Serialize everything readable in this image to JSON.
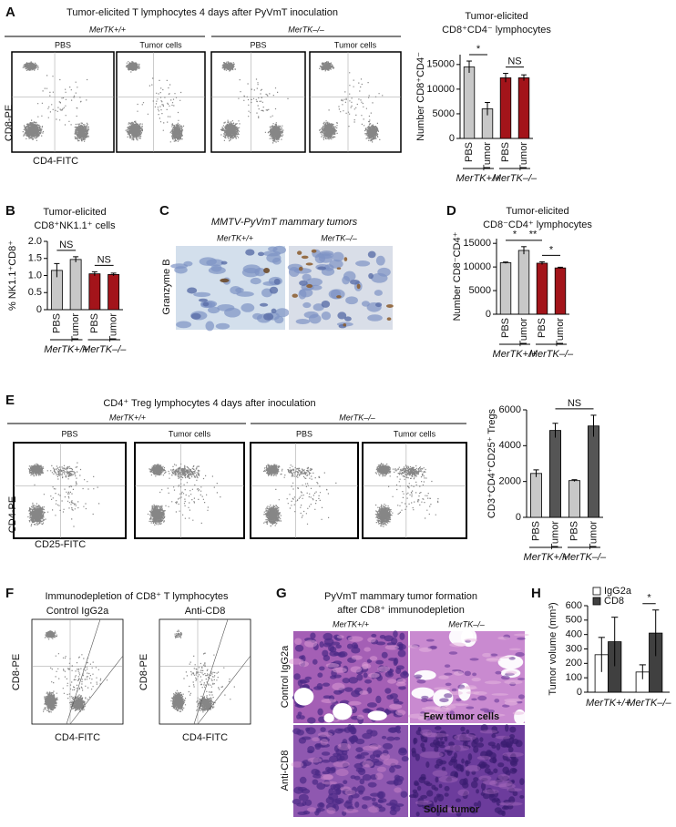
{
  "figure": {
    "A": {
      "letter": "A",
      "title": "Tumor-elicited T lymphocytes 4 days after PyVmT inoculation",
      "groups": [
        "MerTK+/+",
        "MerTK–/–"
      ],
      "plots": [
        "PBS",
        "Tumor cells",
        "PBS",
        "Tumor cells"
      ],
      "ylabel": "CD8-PE",
      "xlabel": "CD4-FITC"
    },
    "B": {
      "letter": "B"
    },
    "C": {
      "letter": "C",
      "title": "MMTV-PyVmT mammary tumors",
      "columns": [
        "MerTK+/+",
        "MerTK–/–"
      ],
      "row_label": "Granzyme B"
    },
    "D": {
      "letter": "D"
    },
    "E": {
      "letter": "E",
      "title": "CD4⁺ Treg lymphocytes 4 days after inoculation",
      "groups": [
        "MerTK+/+",
        "MerTK–/–"
      ],
      "plots": [
        "PBS",
        "Tumor cells",
        "PBS",
        "Tumor cells"
      ],
      "ylabel": "CD4-PE",
      "xlabel": "CD25-FITC"
    },
    "F": {
      "letter": "F",
      "title": "Immunodepletion of CD8⁺ T lymphocytes",
      "plots": [
        "Control IgG2a",
        "Anti-CD8"
      ],
      "ylabel": "CD8-PE",
      "xlabel": "CD4-FITC"
    },
    "G": {
      "letter": "G",
      "title": [
        "PyVmT mammary tumor formation",
        "after CD8⁺ immunodepletion"
      ],
      "columns": [
        "MerTK+/+",
        "MerTK–/–"
      ],
      "rows": [
        "Control IgG2a",
        "Anti-CD8"
      ],
      "captions": [
        "Few tumor cells",
        "Solid tumor"
      ]
    },
    "H": {
      "letter": "H"
    }
  },
  "chart_data": [
    {
      "type": "bar",
      "title": [
        "Tumor-elicited",
        "CD8⁺CD4⁻ lymphocytes"
      ],
      "ylabel": "Number CD8⁺CD4⁻",
      "categories": [
        "PBS",
        "Tumor",
        "PBS",
        "Tumor"
      ],
      "values": [
        14500,
        6000,
        12300,
        12300
      ],
      "errors": [
        1200,
        1300,
        900,
        600
      ],
      "colors": [
        "#c8c8c8",
        "#c8c8c8",
        "#a3141a",
        "#a3141a"
      ],
      "group_labels": [
        "MerTK+/+",
        "MerTK–/–"
      ],
      "significance": [
        {
          "label": "*",
          "between": [
            0,
            1
          ]
        },
        {
          "label": "NS",
          "between": [
            2,
            3
          ]
        }
      ],
      "ylim": [
        0,
        17000
      ],
      "yticks": [
        0,
        5000,
        10000,
        15000
      ]
    },
    {
      "type": "bar",
      "title": [
        "Tumor-elicited",
        "CD8⁺NK1.1⁺ cells"
      ],
      "ylabel": "% NK1.1⁺CD8⁺",
      "categories": [
        "PBS",
        "Tumor",
        "PBS",
        "Tumor"
      ],
      "values": [
        1.15,
        1.47,
        1.05,
        1.03
      ],
      "errors": [
        0.2,
        0.08,
        0.06,
        0.04
      ],
      "colors": [
        "#c8c8c8",
        "#c8c8c8",
        "#a3141a",
        "#a3141a"
      ],
      "group_labels": [
        "MerTK+/+",
        "MerTK–/–"
      ],
      "significance": [
        {
          "label": "NS",
          "between": [
            0,
            1
          ]
        },
        {
          "label": "NS",
          "between": [
            2,
            3
          ]
        }
      ],
      "ylim": [
        0,
        2
      ],
      "yticks": [
        0,
        0.5,
        {
          "value": 1,
          "label": "1.0"
        },
        1.5,
        {
          "value": 2,
          "label": "2.0"
        }
      ]
    },
    {
      "type": "bar",
      "title": [
        "Tumor-elicited",
        "CD8⁻CD4⁺ lymphocytes"
      ],
      "ylabel": "Number CD8⁻CD4⁺",
      "categories": [
        "PBS",
        "Tumor",
        "PBS",
        "Tumor"
      ],
      "values": [
        10900,
        13500,
        10800,
        9800
      ],
      "errors": [
        150,
        800,
        300,
        150
      ],
      "colors": [
        "#c8c8c8",
        "#c8c8c8",
        "#a3141a",
        "#a3141a"
      ],
      "group_labels": [
        "MerTK+/+",
        "MerTK–/–"
      ],
      "significance": [
        {
          "label": "*",
          "between": [
            0,
            1
          ]
        },
        {
          "label": "**",
          "between": [
            1,
            2
          ]
        },
        {
          "label": "*",
          "between": [
            2,
            3
          ]
        }
      ],
      "ylim": [
        0,
        16000
      ],
      "yticks": [
        0,
        5000,
        10000,
        15000
      ]
    },
    {
      "type": "bar",
      "ylabel": "CD3⁺CD4⁺CD25⁺ Tregs",
      "categories": [
        "PBS",
        "Tumor",
        "PBS",
        "Tumor"
      ],
      "values": [
        2450,
        4850,
        2050,
        5100
      ],
      "errors": [
        200,
        400,
        50,
        600
      ],
      "colors": [
        "#c8c8c8",
        "#555555",
        "#c8c8c8",
        "#555555"
      ],
      "group_labels": [
        "MerTK+/+",
        "MerTK–/–"
      ],
      "significance": [
        {
          "label": "NS",
          "between": [
            1,
            3
          ]
        }
      ],
      "ylim": [
        0,
        6000
      ],
      "yticks": [
        0,
        2000,
        4000,
        6000
      ]
    },
    {
      "type": "bar",
      "ylabel": "Tumor volume (mm³)",
      "categories": [
        "MerTK+/+",
        "MerTK–/–"
      ],
      "series": [
        {
          "name": "IgG2a",
          "color": "#ffffff",
          "values": [
            260,
            140
          ],
          "errors": [
            120,
            50
          ]
        },
        {
          "name": "CD8",
          "color": "#404040",
          "values": [
            350,
            410
          ],
          "errors": [
            170,
            160
          ]
        }
      ],
      "significance": [
        {
          "label": "*",
          "category": 1,
          "between": [
            0,
            1
          ]
        }
      ],
      "legend": "top-left",
      "ylim": [
        0,
        600
      ],
      "yticks": [
        0,
        100,
        200,
        300,
        400,
        500,
        600
      ]
    }
  ]
}
